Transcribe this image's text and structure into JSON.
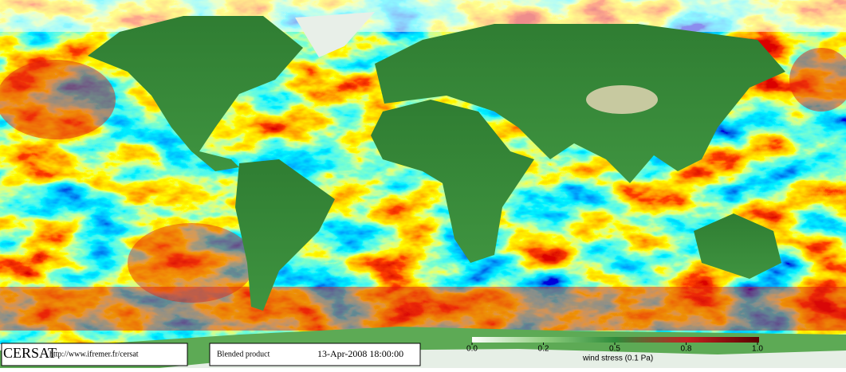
{
  "logo": "CERSAT",
  "url": "http://www.ifremer.fr/cersat",
  "product": "Blended product",
  "timestamp": "13-Apr-2008 18:00:00",
  "colorbar": {
    "label": "wind stress (0.1 Pa)",
    "ticks": [
      {
        "value": 0,
        "label": "0.0"
      },
      0.2,
      0.5,
      0.8,
      {
        "value": 1,
        "label": "1.0"
      }
    ]
  }
}
